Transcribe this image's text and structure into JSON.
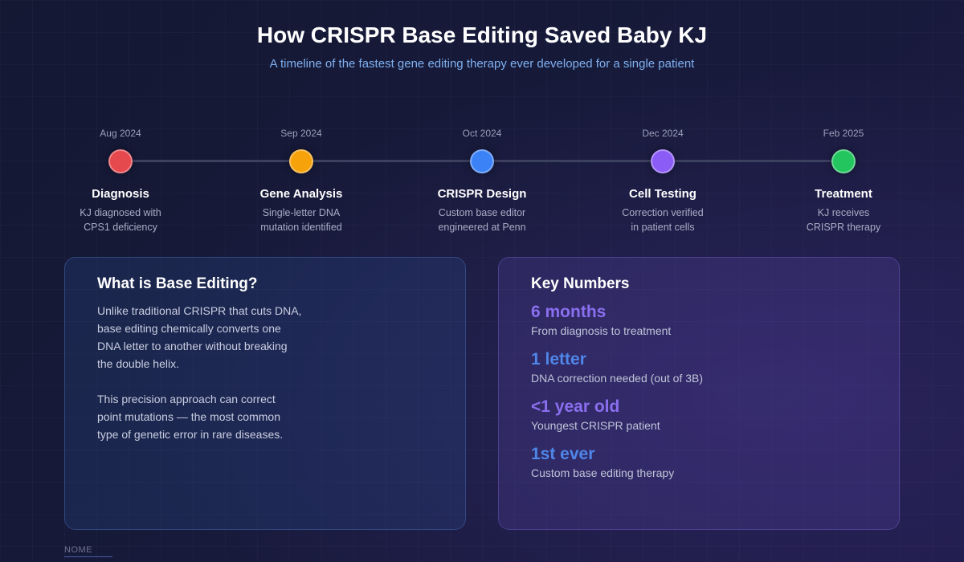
{
  "header": {
    "title": "How CRISPR Base Editing Saved Baby KJ",
    "subtitle": "A timeline of the fastest gene editing therapy ever developed for a single patient"
  },
  "timeline": [
    {
      "date": "Aug 2024",
      "label": "Diagnosis",
      "desc": "KJ diagnosed with\nCPS1 deficiency",
      "color": "#e5484d"
    },
    {
      "date": "Sep 2024",
      "label": "Gene Analysis",
      "desc": "Single-letter DNA\nmutation identified",
      "color": "#f5a20b"
    },
    {
      "date": "Oct 2024",
      "label": "CRISPR Design",
      "desc": "Custom base editor\nengineered at Penn",
      "color": "#3b82f6"
    },
    {
      "date": "Dec 2024",
      "label": "Cell Testing",
      "desc": "Correction verified\nin patient cells",
      "color": "#8b5cf6"
    },
    {
      "date": "Feb 2025",
      "label": "Treatment",
      "desc": "KJ receives\nCRISPR therapy",
      "color": "#22c55e"
    }
  ],
  "base_editing": {
    "title": "What is Base Editing?",
    "para1": "Unlike traditional CRISPR that cuts DNA,\nbase editing chemically converts one\nDNA letter to another without breaking\nthe double helix.",
    "para2": "This precision approach can correct\npoint mutations — the most common\ntype of genetic error in rare diseases."
  },
  "key_numbers": {
    "title": "Key Numbers",
    "stats": [
      {
        "value": "6 months",
        "caption": "From diagnosis to treatment",
        "color": "#8b6ff0"
      },
      {
        "value": "1 letter",
        "caption": "DNA correction needed (out of 3B)",
        "color": "#4f86e8"
      },
      {
        "value": "<1 year old",
        "caption": "Youngest CRISPR patient",
        "color": "#8b6ff0"
      },
      {
        "value": "1st ever",
        "caption": "Custom base editing therapy",
        "color": "#4f86e8"
      }
    ]
  },
  "footer": {
    "note": "NOME"
  }
}
